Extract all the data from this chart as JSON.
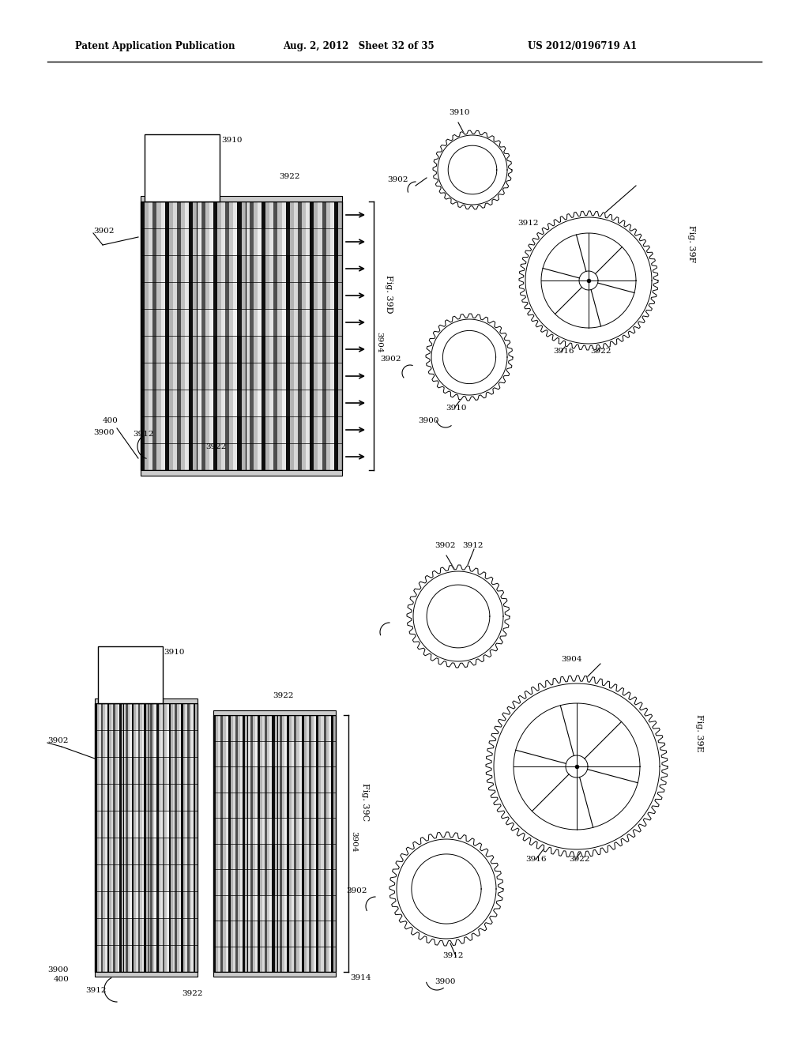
{
  "header_left": "Patent Application Publication",
  "header_mid": "Aug. 2, 2012   Sheet 32 of 35",
  "header_right": "US 2012/0196719 A1",
  "bg_color": "#ffffff",
  "line_color": "#000000"
}
